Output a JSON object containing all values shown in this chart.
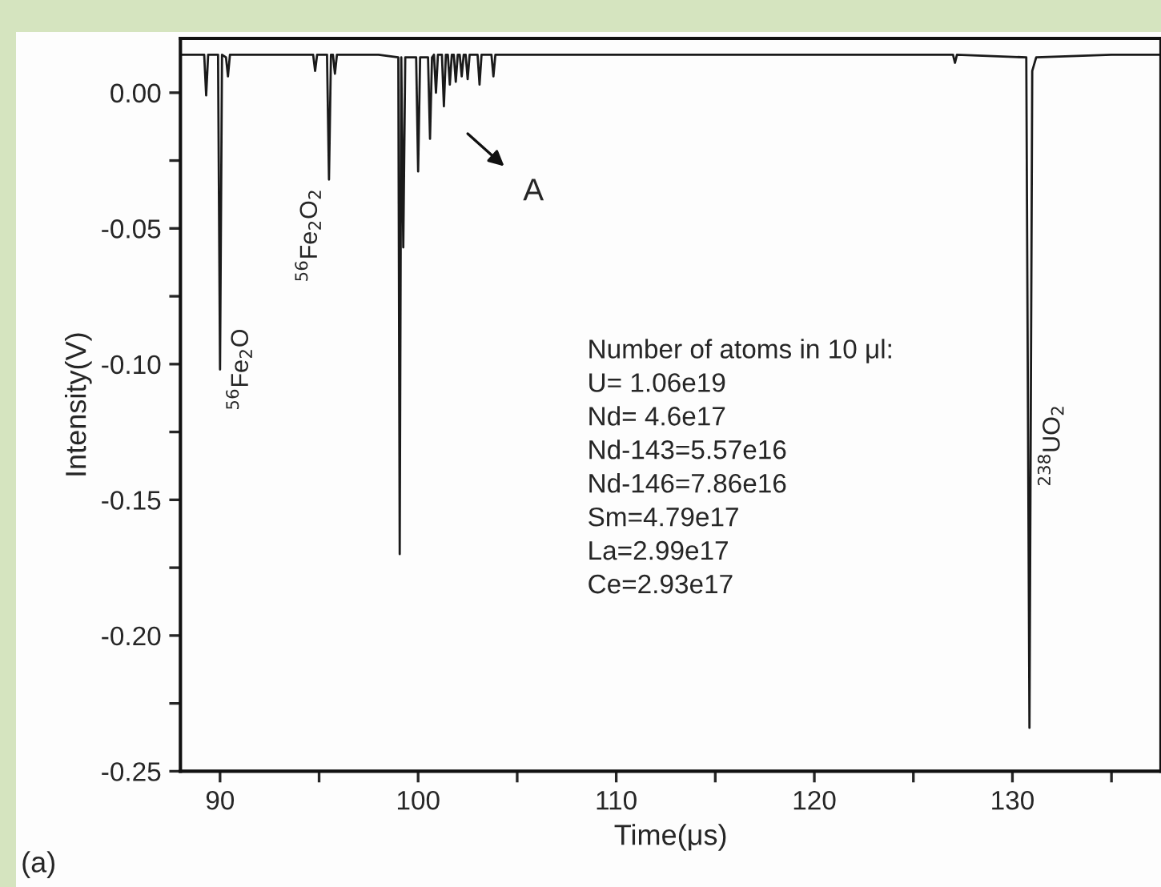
{
  "chart_data": {
    "type": "line",
    "xlabel": "Time(μs)",
    "ylabel": "Intensity(V)",
    "xlim": [
      88,
      137.5
    ],
    "ylim": [
      -0.25,
      0.02
    ],
    "xticks": [
      90,
      {
        "value": 95,
        "label": null
      },
      100,
      {
        "value": 105,
        "label": null
      },
      110,
      {
        "value": 115,
        "label": null
      },
      120,
      {
        "value": 125,
        "label": null
      },
      130,
      {
        "value": 135,
        "label": null
      }
    ],
    "yticks": [
      {
        "value": 0.0,
        "label": "0.00"
      },
      {
        "value": -0.025,
        "label": null
      },
      {
        "value": -0.05,
        "label": "-0.05"
      },
      {
        "value": -0.075,
        "label": null
      },
      {
        "value": -0.1,
        "label": "-0.10"
      },
      {
        "value": -0.125,
        "label": null
      },
      {
        "value": -0.15,
        "label": "-0.15"
      },
      {
        "value": -0.175,
        "label": null
      },
      {
        "value": -0.2,
        "label": "-0.20"
      },
      {
        "value": -0.225,
        "label": null
      },
      {
        "value": -0.25,
        "label": "-0.25"
      }
    ],
    "grid": false,
    "legend": false,
    "marker": "none",
    "line_style": "solid",
    "series": [
      {
        "color": "#1a1a1a",
        "x": [
          88.0,
          89.2,
          89.3,
          89.4,
          89.9,
          90.0,
          90.1,
          90.3,
          90.4,
          90.5,
          92.0,
          94.7,
          94.8,
          94.9,
          95.4,
          95.5,
          95.6,
          95.7,
          95.8,
          95.9,
          98.0,
          99.0,
          99.07,
          99.15,
          99.25,
          99.35,
          99.9,
          100.0,
          100.1,
          100.5,
          100.6,
          100.7,
          100.8,
          100.9,
          101.0,
          101.2,
          101.3,
          101.4,
          101.5,
          101.6,
          101.7,
          101.8,
          101.9,
          102.0,
          102.1,
          102.2,
          102.3,
          102.4,
          102.5,
          102.6,
          103.0,
          103.1,
          103.2,
          103.7,
          103.8,
          103.9,
          110.0,
          120.0,
          127.0,
          127.1,
          127.2,
          130.7,
          130.86,
          131.0,
          131.2,
          135.0,
          137.5
        ],
        "values": [
          0.014,
          0.014,
          -0.001,
          0.014,
          0.014,
          -0.102,
          0.014,
          0.013,
          0.006,
          0.014,
          0.014,
          0.014,
          0.008,
          0.014,
          0.014,
          -0.032,
          0.014,
          0.014,
          0.007,
          0.014,
          0.014,
          0.013,
          -0.17,
          0.013,
          -0.057,
          0.013,
          0.013,
          -0.029,
          0.013,
          0.013,
          -0.017,
          0.013,
          0.014,
          0.0,
          0.014,
          0.014,
          -0.005,
          0.014,
          0.014,
          0.003,
          0.014,
          0.014,
          0.004,
          0.014,
          0.014,
          0.006,
          0.014,
          0.014,
          0.005,
          0.014,
          0.014,
          0.003,
          0.014,
          0.014,
          0.006,
          0.014,
          0.014,
          0.014,
          0.014,
          0.011,
          0.014,
          0.013,
          -0.234,
          0.008,
          0.013,
          0.014,
          0.014
        ]
      }
    ],
    "annotations": [
      {
        "text": "$^{56}$Fe$_{2}$O",
        "x": 90.0,
        "y": -0.102
      },
      {
        "text": "$^{56}$Fe$_{2}$O$_{2}$",
        "x": 95.5,
        "y": -0.032
      },
      "A",
      "Number of atoms in 10 μl:\nU= 1.06e19\nNd= 4.6e17\nNd-143=5.57e16\nNd-146=7.86e16\nSm=4.79e17\nLa=2.99e17\nCe=2.93e17",
      {
        "text": "$^{238}$UO$_{2}$",
        "x": 130.86,
        "y": -0.13
      },
      "(a)"
    ]
  }
}
